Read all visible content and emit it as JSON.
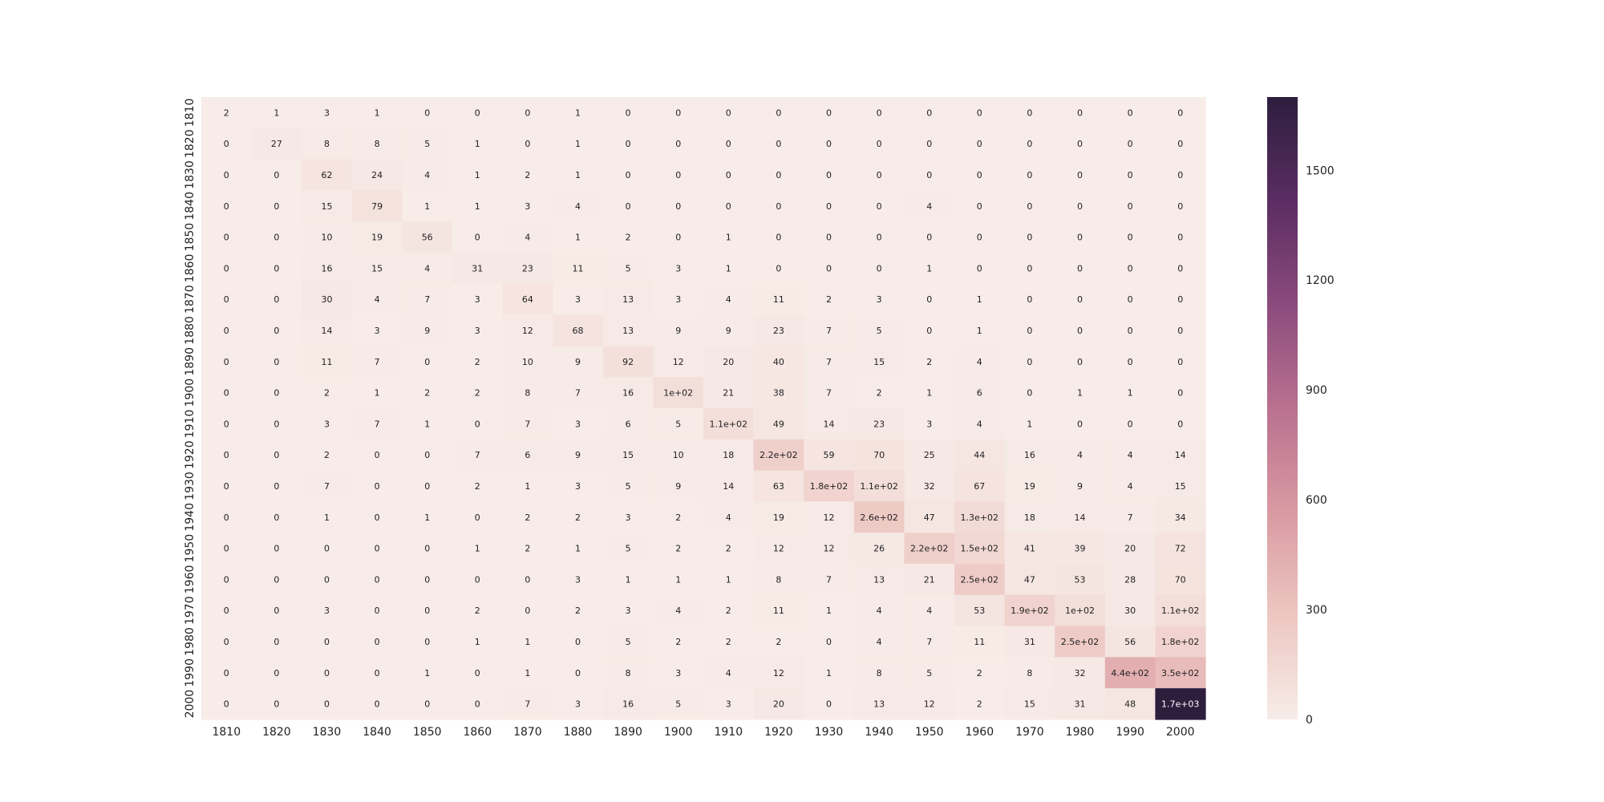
{
  "chart_data": {
    "type": "heatmap",
    "title": "",
    "xlabel": "",
    "ylabel": "",
    "x_labels": [
      "1810",
      "1820",
      "1830",
      "1840",
      "1850",
      "1860",
      "1870",
      "1880",
      "1890",
      "1900",
      "1910",
      "1920",
      "1930",
      "1940",
      "1950",
      "1960",
      "1970",
      "1980",
      "1990",
      "2000"
    ],
    "y_labels": [
      "1810",
      "1820",
      "1830",
      "1840",
      "1850",
      "1860",
      "1870",
      "1880",
      "1890",
      "1900",
      "1910",
      "1920",
      "1930",
      "1940",
      "1950",
      "1960",
      "1970",
      "1980",
      "1990",
      "2000"
    ],
    "values": [
      [
        2,
        1,
        3,
        1,
        0,
        0,
        0,
        1,
        0,
        0,
        0,
        0,
        0,
        0,
        0,
        0,
        0,
        0,
        0,
        0
      ],
      [
        0,
        27,
        8,
        8,
        5,
        1,
        0,
        1,
        0,
        0,
        0,
        0,
        0,
        0,
        0,
        0,
        0,
        0,
        0,
        0
      ],
      [
        0,
        0,
        62,
        24,
        4,
        1,
        2,
        1,
        0,
        0,
        0,
        0,
        0,
        0,
        0,
        0,
        0,
        0,
        0,
        0
      ],
      [
        0,
        0,
        15,
        79,
        1,
        1,
        3,
        4,
        0,
        0,
        0,
        0,
        0,
        0,
        4,
        0,
        0,
        0,
        0,
        0
      ],
      [
        0,
        0,
        10,
        19,
        56,
        0,
        4,
        1,
        2,
        0,
        1,
        0,
        0,
        0,
        0,
        0,
        0,
        0,
        0,
        0
      ],
      [
        0,
        0,
        16,
        15,
        4,
        31,
        23,
        11,
        5,
        3,
        1,
        0,
        0,
        0,
        1,
        0,
        0,
        0,
        0,
        0
      ],
      [
        0,
        0,
        30,
        4,
        7,
        3,
        64,
        3,
        13,
        3,
        4,
        11,
        2,
        3,
        0,
        1,
        0,
        0,
        0,
        0
      ],
      [
        0,
        0,
        14,
        3,
        9,
        3,
        12,
        68,
        13,
        9,
        9,
        23,
        7,
        5,
        0,
        1,
        0,
        0,
        0,
        0
      ],
      [
        0,
        0,
        11,
        7,
        0,
        2,
        10,
        9,
        92,
        12,
        20,
        40,
        7,
        15,
        2,
        4,
        0,
        0,
        0,
        0
      ],
      [
        0,
        0,
        2,
        1,
        2,
        2,
        8,
        7,
        16,
        100,
        21,
        38,
        7,
        2,
        1,
        6,
        0,
        1,
        1,
        0
      ],
      [
        0,
        0,
        3,
        7,
        1,
        0,
        7,
        3,
        6,
        5,
        110,
        49,
        14,
        23,
        3,
        4,
        1,
        0,
        0,
        0
      ],
      [
        0,
        0,
        2,
        0,
        0,
        7,
        6,
        9,
        15,
        10,
        18,
        220,
        59,
        70,
        25,
        44,
        16,
        4,
        4,
        14
      ],
      [
        0,
        0,
        7,
        0,
        0,
        2,
        1,
        3,
        5,
        9,
        14,
        63,
        180,
        110,
        32,
        67,
        19,
        9,
        4,
        15
      ],
      [
        0,
        0,
        1,
        0,
        1,
        0,
        2,
        2,
        3,
        2,
        4,
        19,
        12,
        260,
        47,
        130,
        18,
        14,
        7,
        34
      ],
      [
        0,
        0,
        0,
        0,
        0,
        1,
        2,
        1,
        5,
        2,
        2,
        12,
        12,
        26,
        220,
        150,
        41,
        39,
        20,
        72
      ],
      [
        0,
        0,
        0,
        0,
        0,
        0,
        0,
        3,
        1,
        1,
        1,
        8,
        7,
        13,
        21,
        250,
        47,
        53,
        28,
        70
      ],
      [
        0,
        0,
        3,
        0,
        0,
        2,
        0,
        2,
        3,
        4,
        2,
        11,
        1,
        4,
        4,
        53,
        190,
        100,
        30,
        110
      ],
      [
        0,
        0,
        0,
        0,
        0,
        1,
        1,
        0,
        5,
        2,
        2,
        2,
        0,
        4,
        7,
        11,
        31,
        250,
        56,
        180
      ],
      [
        0,
        0,
        0,
        0,
        1,
        0,
        1,
        0,
        8,
        3,
        4,
        12,
        1,
        8,
        5,
        2,
        8,
        32,
        440,
        350
      ],
      [
        0,
        0,
        0,
        0,
        0,
        0,
        7,
        3,
        16,
        5,
        3,
        20,
        0,
        13,
        12,
        2,
        15,
        31,
        48,
        1700
      ]
    ],
    "cell_labels": [
      [
        "2",
        "1",
        "3",
        "1",
        "0",
        "0",
        "0",
        "1",
        "0",
        "0",
        "0",
        "0",
        "0",
        "0",
        "0",
        "0",
        "0",
        "0",
        "0",
        "0"
      ],
      [
        "0",
        "27",
        "8",
        "8",
        "5",
        "1",
        "0",
        "1",
        "0",
        "0",
        "0",
        "0",
        "0",
        "0",
        "0",
        "0",
        "0",
        "0",
        "0",
        "0"
      ],
      [
        "0",
        "0",
        "62",
        "24",
        "4",
        "1",
        "2",
        "1",
        "0",
        "0",
        "0",
        "0",
        "0",
        "0",
        "0",
        "0",
        "0",
        "0",
        "0",
        "0"
      ],
      [
        "0",
        "0",
        "15",
        "79",
        "1",
        "1",
        "3",
        "4",
        "0",
        "0",
        "0",
        "0",
        "0",
        "0",
        "4",
        "0",
        "0",
        "0",
        "0",
        "0"
      ],
      [
        "0",
        "0",
        "10",
        "19",
        "56",
        "0",
        "4",
        "1",
        "2",
        "0",
        "1",
        "0",
        "0",
        "0",
        "0",
        "0",
        "0",
        "0",
        "0",
        "0"
      ],
      [
        "0",
        "0",
        "16",
        "15",
        "4",
        "31",
        "23",
        "11",
        "5",
        "3",
        "1",
        "0",
        "0",
        "0",
        "1",
        "0",
        "0",
        "0",
        "0",
        "0"
      ],
      [
        "0",
        "0",
        "30",
        "4",
        "7",
        "3",
        "64",
        "3",
        "13",
        "3",
        "4",
        "11",
        "2",
        "3",
        "0",
        "1",
        "0",
        "0",
        "0",
        "0"
      ],
      [
        "0",
        "0",
        "14",
        "3",
        "9",
        "3",
        "12",
        "68",
        "13",
        "9",
        "9",
        "23",
        "7",
        "5",
        "0",
        "1",
        "0",
        "0",
        "0",
        "0"
      ],
      [
        "0",
        "0",
        "11",
        "7",
        "0",
        "2",
        "10",
        "9",
        "92",
        "12",
        "20",
        "40",
        "7",
        "15",
        "2",
        "4",
        "0",
        "0",
        "0",
        "0"
      ],
      [
        "0",
        "0",
        "2",
        "1",
        "2",
        "2",
        "8",
        "7",
        "16",
        "1e+02",
        "21",
        "38",
        "7",
        "2",
        "1",
        "6",
        "0",
        "1",
        "1",
        "0"
      ],
      [
        "0",
        "0",
        "3",
        "7",
        "1",
        "0",
        "7",
        "3",
        "6",
        "5",
        "1.1e+02",
        "49",
        "14",
        "23",
        "3",
        "4",
        "1",
        "0",
        "0",
        "0"
      ],
      [
        "0",
        "0",
        "2",
        "0",
        "0",
        "7",
        "6",
        "9",
        "15",
        "10",
        "18",
        "2.2e+02",
        "59",
        "70",
        "25",
        "44",
        "16",
        "4",
        "4",
        "14"
      ],
      [
        "0",
        "0",
        "7",
        "0",
        "0",
        "2",
        "1",
        "3",
        "5",
        "9",
        "14",
        "63",
        "1.8e+02",
        "1.1e+02",
        "32",
        "67",
        "19",
        "9",
        "4",
        "15"
      ],
      [
        "0",
        "0",
        "1",
        "0",
        "1",
        "0",
        "2",
        "2",
        "3",
        "2",
        "4",
        "19",
        "12",
        "2.6e+02",
        "47",
        "1.3e+02",
        "18",
        "14",
        "7",
        "34"
      ],
      [
        "0",
        "0",
        "0",
        "0",
        "0",
        "1",
        "2",
        "1",
        "5",
        "2",
        "2",
        "12",
        "12",
        "26",
        "2.2e+02",
        "1.5e+02",
        "41",
        "39",
        "20",
        "72"
      ],
      [
        "0",
        "0",
        "0",
        "0",
        "0",
        "0",
        "0",
        "3",
        "1",
        "1",
        "1",
        "8",
        "7",
        "13",
        "21",
        "2.5e+02",
        "47",
        "53",
        "28",
        "70"
      ],
      [
        "0",
        "0",
        "3",
        "0",
        "0",
        "2",
        "0",
        "2",
        "3",
        "4",
        "2",
        "11",
        "1",
        "4",
        "4",
        "53",
        "1.9e+02",
        "1e+02",
        "30",
        "1.1e+02"
      ],
      [
        "0",
        "0",
        "0",
        "0",
        "0",
        "1",
        "1",
        "0",
        "5",
        "2",
        "2",
        "2",
        "0",
        "4",
        "7",
        "11",
        "31",
        "2.5e+02",
        "56",
        "1.8e+02"
      ],
      [
        "0",
        "0",
        "0",
        "0",
        "1",
        "0",
        "1",
        "0",
        "8",
        "3",
        "4",
        "12",
        "1",
        "8",
        "5",
        "2",
        "8",
        "32",
        "4.4e+02",
        "3.5e+02"
      ],
      [
        "0",
        "0",
        "0",
        "0",
        "0",
        "0",
        "7",
        "3",
        "16",
        "5",
        "3",
        "20",
        "0",
        "13",
        "12",
        "2",
        "15",
        "31",
        "48",
        "1.7e+03"
      ]
    ],
    "colorbar": {
      "range": [
        0,
        1700
      ],
      "ticks": [
        0,
        300,
        600,
        900,
        1200,
        1500
      ],
      "tick_labels": [
        "0",
        "300",
        "600",
        "900",
        "1200",
        "1500"
      ],
      "colors": [
        "#f7ece8",
        "#edc7c1",
        "#d99aa2",
        "#b9718f",
        "#8b4b7d",
        "#5b2d62",
        "#2d1e3e"
      ]
    },
    "grid": false
  }
}
